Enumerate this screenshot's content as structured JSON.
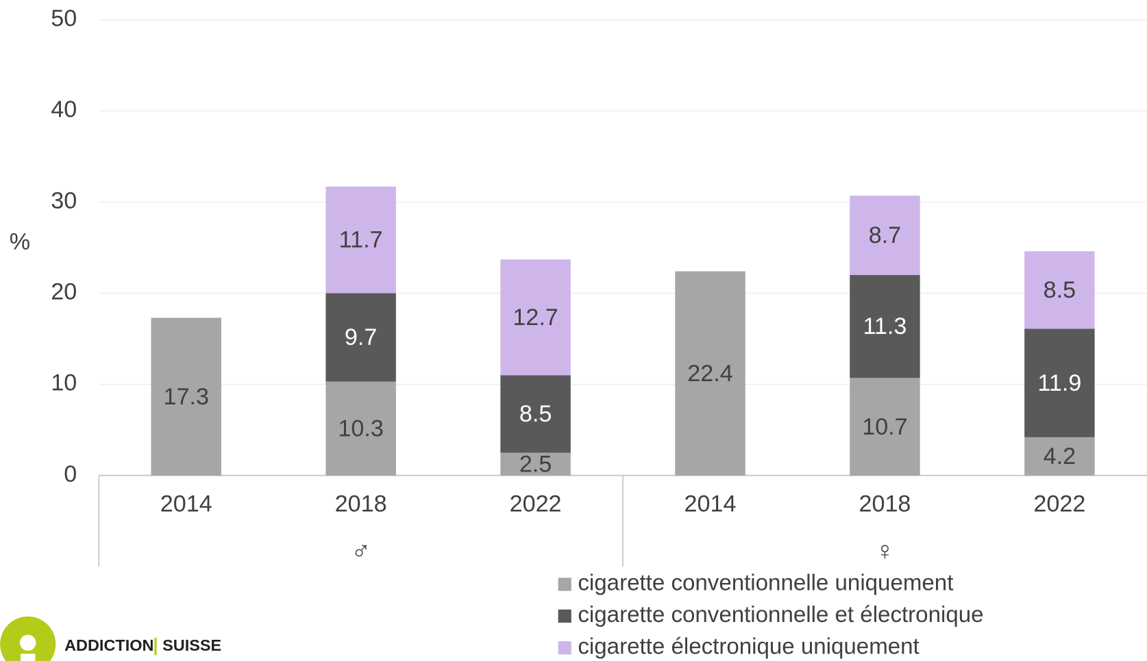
{
  "chart_data": {
    "type": "stacked_bar",
    "y_axis_label": "%",
    "categories": [
      "2014",
      "2018",
      "2022",
      "2014",
      "2018",
      "2022"
    ],
    "groups": [
      {
        "label": "♂",
        "span": 3
      },
      {
        "label": "♀",
        "span": 3
      }
    ],
    "series": [
      {
        "name": "cigarette conventionnelle uniquement",
        "color": "#a6a6a6",
        "values": [
          17.3,
          10.3,
          2.5,
          22.4,
          10.7,
          4.2
        ]
      },
      {
        "name": "cigarette conventionnelle et électronique",
        "color": "#595959",
        "values": [
          null,
          9.7,
          8.5,
          null,
          11.3,
          11.9
        ]
      },
      {
        "name": "cigarette électronique uniquement",
        "color": "#ceb6ea",
        "values": [
          null,
          11.7,
          12.7,
          null,
          8.7,
          8.5
        ]
      }
    ],
    "ylim": [
      0,
      50
    ],
    "yticks": [
      0,
      10,
      20,
      30,
      40,
      50
    ],
    "grid": true,
    "legend": "bottom"
  },
  "logo": {
    "left": "ADDICTION",
    "right": "SUISSE",
    "color": "#b4cb1a"
  }
}
